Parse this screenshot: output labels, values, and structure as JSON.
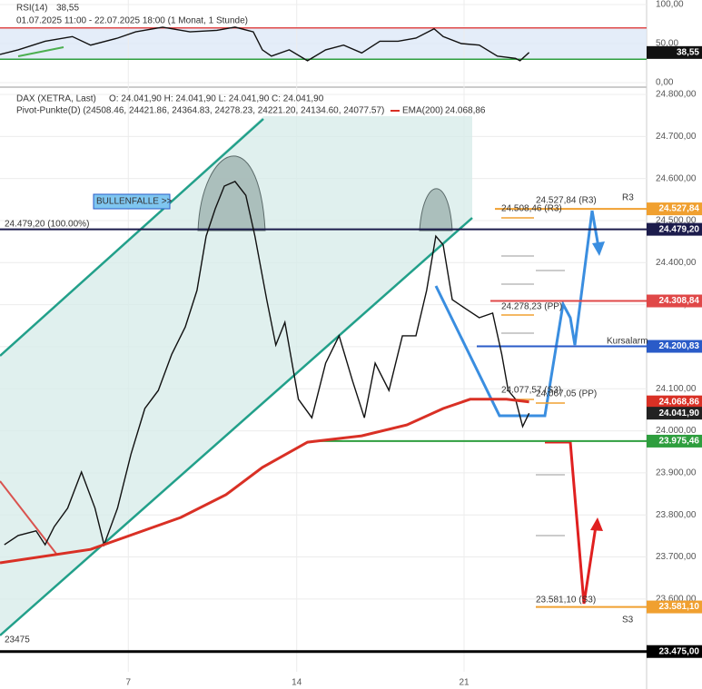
{
  "chart_data": [
    {
      "type": "line",
      "title": "RSI(14)",
      "value_label": "38,55",
      "subtitle": "01.07.2025 11:00 - 22.07.2025 18:00 (1 Monat, 1 Stunde)",
      "xlim": [
        0.2,
        19.4
      ],
      "ylim": [
        0,
        100
      ],
      "yticks": [
        {
          "value": 100,
          "label": "100,00"
        },
        {
          "value": 50,
          "label": "50,00"
        },
        {
          "value": 0,
          "label": "0,00"
        }
      ],
      "levels": [
        70,
        30
      ],
      "grid": true,
      "series": [
        {
          "color": "#111111",
          "x": [
            0.2,
            0.74,
            1.54,
            2.35,
            2.89,
            3.69,
            4.23,
            5.03,
            5.84,
            6.64,
            7.18,
            7.72,
            7.99,
            8.26,
            8.79,
            9.33,
            9.87,
            10.4,
            10.94,
            11.48,
            12.02,
            12.55,
            13.09,
            13.36,
            13.9,
            14.43,
            14.97,
            15.51,
            15.64,
            15.91
          ],
          "values": [
            36,
            42,
            53,
            59,
            48,
            57,
            65,
            71,
            65,
            67,
            71,
            65,
            42,
            34,
            42,
            28,
            42,
            48,
            38,
            53,
            53,
            57,
            69,
            59,
            50,
            48,
            34,
            31,
            28,
            38.55
          ]
        }
      ]
    },
    {
      "type": "line",
      "legend_extra": "Pivot-Punkte(D) (24508.46, 24421.86, 24364.83, 24278.23, 24221.20, 24134.60, 24077.57)",
      "xlim": [
        0.2,
        19.4
      ],
      "ylim": [
        23455,
        24813
      ],
      "xticks": [
        {
          "value": 4.01,
          "label": "7"
        },
        {
          "value": 9.01,
          "label": "14"
        },
        {
          "value": 13.98,
          "label": "21"
        }
      ],
      "yticks": [
        {
          "value": 24800,
          "label": "24.800,00"
        },
        {
          "value": 24700,
          "label": "24.700,00"
        },
        {
          "value": 24600,
          "label": "24.600,00"
        },
        {
          "value": 24500,
          "label": "24.500,00"
        },
        {
          "value": 24400,
          "label": "24.400,00"
        },
        {
          "value": 24300,
          "label": "24.300,00"
        },
        {
          "value": 24200,
          "label": "24.200,00"
        },
        {
          "value": 24100,
          "label": "24.100,00"
        },
        {
          "value": 24000,
          "label": "24.000,00"
        },
        {
          "value": 23900,
          "label": "23.900,00"
        },
        {
          "value": 23800,
          "label": "23.800,00"
        },
        {
          "value": 23700,
          "label": "23.700,00"
        },
        {
          "value": 23600,
          "label": "23.600,00"
        }
      ],
      "grid": true,
      "series": [
        {
          "name": "DAX (XETRA, Last)",
          "ohlc_label": "O: 24.041,90  H: 24.041,90  L: 24.041,90  C: 24.041,90",
          "color": "#111111",
          "x": [
            0.33,
            0.74,
            1.27,
            1.54,
            1.81,
            2.21,
            2.62,
            3.02,
            3.29,
            3.69,
            4.09,
            4.5,
            4.9,
            5.3,
            5.7,
            6.05,
            6.32,
            6.59,
            6.86,
            7.18,
            7.5,
            7.77,
            8.12,
            8.39,
            8.66,
            9.06,
            9.46,
            9.87,
            10.27,
            10.67,
            11.02,
            11.34,
            11.75,
            12.15,
            12.55,
            12.87,
            13.14,
            13.36,
            13.63,
            14.03,
            14.43,
            14.83,
            15.1,
            15.29,
            15.51,
            15.72,
            15.91
          ],
          "values": [
            23729,
            23751,
            23762,
            23729,
            23772,
            23816,
            23902,
            23816,
            23729,
            23816,
            23945,
            24053,
            24096,
            24182,
            24247,
            24334,
            24463,
            24528,
            24582,
            24593,
            24560,
            24463,
            24312,
            24204,
            24258,
            24075,
            24031,
            24161,
            24226,
            24118,
            24031,
            24161,
            24096,
            24226,
            24226,
            24334,
            24463,
            24442,
            24312,
            24290,
            24269,
            24280,
            24182,
            24096,
            24075,
            24010,
            24041.9
          ]
        },
        {
          "name": "EMA(200)",
          "last_label": "24.068,86",
          "color": "#d93025",
          "x": [
            0.2,
            2.89,
            5.57,
            6.91,
            7.99,
            9.33,
            10.94,
            12.28,
            13.36,
            14.16,
            15.24,
            15.91
          ],
          "values": [
            23686,
            23718,
            23794,
            23848,
            23913,
            23973,
            23988,
            24014,
            24053,
            24075,
            24075,
            24068.86
          ]
        }
      ],
      "levels": [
        {
          "value": 24527.84,
          "label": "24.527,84",
          "color": "#f0a030"
        },
        {
          "value": 24479.2,
          "label": "24.479,20",
          "color": "#1c1c4c"
        },
        {
          "value": 24308.84,
          "label": "24.308,84",
          "color": "#e04848"
        },
        {
          "value": 24200.83,
          "label": "24.200,83",
          "color": "#2a5bc8"
        },
        {
          "value": 24068.86,
          "label": "24.068,86",
          "color": "#d93025"
        },
        {
          "value": 24041.9,
          "label": "24.041,90",
          "color": "#222222"
        },
        {
          "value": 23975.46,
          "label": "23.975,46",
          "color": "#2e9e3e"
        },
        {
          "value": 23581.1,
          "label": "23.581,10",
          "color": "#f0a030"
        },
        {
          "value": 23475,
          "label": "23.475,00",
          "color": "#000000"
        }
      ],
      "annotations": [
        "R3",
        "S3",
        "23475",
        "BULLENFALLE >>",
        "24.479,20 (100.00%)",
        "24.527,84 (R3)",
        "24.508,46 (R3)",
        "24.278,23 (PP)",
        "24.077,57 (S3)",
        "24.067,05 (PP)",
        "23.581,10 (S3)",
        "Kursalarm"
      ]
    }
  ]
}
